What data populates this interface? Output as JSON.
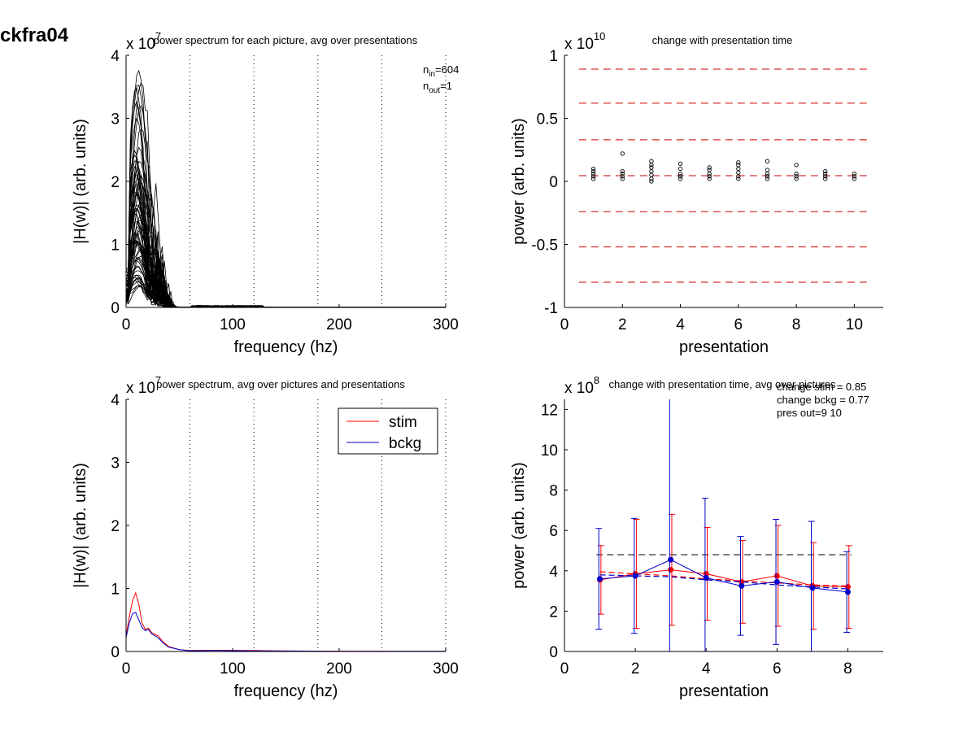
{
  "figure_title": "ckfra04",
  "chart_data": [
    {
      "id": "p1",
      "type": "line",
      "title": "power spectrum for each picture, avg over presentations",
      "xlabel": "frequency (hz)",
      "ylabel": "|H(w)| (arb. units)",
      "exponent_label": "x 10",
      "exponent": "7",
      "xlim": [
        0,
        300
      ],
      "ylim": [
        0,
        4
      ],
      "xticks": [
        0,
        100,
        200,
        300
      ],
      "yticks": [
        0,
        1,
        2,
        3,
        4
      ],
      "vlines": [
        60,
        120,
        180,
        240,
        300
      ],
      "annotations": {
        "n_in_label": "n",
        "n_in_sub": "in",
        "n_in_value": "=604",
        "n_out_label": "n",
        "n_out_sub": "out",
        "n_out_value": "=1"
      },
      "line_color": "#000000",
      "representative_peaks": [
        3.75,
        3.45,
        3.25,
        2.5,
        2.4,
        2.2,
        2.05,
        1.9,
        1.75,
        1.6,
        1.5,
        1.4,
        1.3,
        1.2,
        1.1,
        1.0,
        0.9,
        0.8,
        0.7,
        0.6,
        0.5,
        0.45,
        0.4,
        0.35
      ]
    },
    {
      "id": "p2",
      "type": "scatter",
      "title": "change with presentation time",
      "xlabel": "presentation",
      "ylabel": "power (arb. units)",
      "exponent_label": "x 10",
      "exponent": "10",
      "xlim": [
        0,
        11
      ],
      "ylim": [
        -1,
        1
      ],
      "xticks": [
        0,
        2,
        4,
        6,
        8,
        10
      ],
      "yticks": [
        -1,
        -0.5,
        0,
        0.5,
        1
      ],
      "ytick_labels": [
        "-1",
        "-0.5",
        "0",
        "0.5",
        "1"
      ],
      "hlines": [
        0.89,
        0.62,
        0.33,
        0.045,
        -0.24,
        -0.52,
        -0.8
      ],
      "hline_color": "#cc0000",
      "points": [
        {
          "x": 1,
          "y": [
            0.02,
            0.04,
            0.06,
            0.08,
            0.1
          ]
        },
        {
          "x": 2,
          "y": [
            0.02,
            0.04,
            0.06,
            0.08,
            0.22
          ]
        },
        {
          "x": 3,
          "y": [
            0.0,
            0.02,
            0.05,
            0.08,
            0.11,
            0.13,
            0.16
          ]
        },
        {
          "x": 4,
          "y": [
            0.02,
            0.04,
            0.06,
            0.1,
            0.14
          ]
        },
        {
          "x": 5,
          "y": [
            0.02,
            0.04,
            0.06,
            0.09,
            0.11
          ]
        },
        {
          "x": 6,
          "y": [
            0.02,
            0.04,
            0.07,
            0.1,
            0.13,
            0.15
          ]
        },
        {
          "x": 7,
          "y": [
            0.02,
            0.04,
            0.06,
            0.09,
            0.16
          ]
        },
        {
          "x": 8,
          "y": [
            0.02,
            0.04,
            0.06,
            0.13
          ]
        },
        {
          "x": 9,
          "y": [
            0.02,
            0.04,
            0.06,
            0.08
          ]
        },
        {
          "x": 10,
          "y": [
            0.02,
            0.04,
            0.06
          ]
        }
      ]
    },
    {
      "id": "p3",
      "type": "line",
      "title": "power spectrum, avg over pictures and presentations",
      "xlabel": "frequency (hz)",
      "ylabel": "|H(w)| (arb. units)",
      "exponent_label": "x 10",
      "exponent": "7",
      "xlim": [
        0,
        300
      ],
      "ylim": [
        0,
        4
      ],
      "xticks": [
        0,
        100,
        200,
        300
      ],
      "yticks": [
        0,
        1,
        2,
        3,
        4
      ],
      "vlines": [
        60,
        120,
        180,
        240,
        300
      ],
      "legend": "top-right",
      "series": [
        {
          "name": "stim",
          "color": "#ff0000",
          "x": [
            0,
            3,
            6,
            9,
            12,
            15,
            18,
            21,
            24,
            27,
            30,
            35,
            40,
            50,
            60,
            80,
            100,
            120,
            140,
            160,
            200,
            250,
            300
          ],
          "y": [
            0.25,
            0.55,
            0.8,
            0.93,
            0.75,
            0.45,
            0.35,
            0.37,
            0.3,
            0.27,
            0.25,
            0.15,
            0.08,
            0.03,
            0.015,
            0.02,
            0.018,
            0.015,
            0.01,
            0.008,
            0.005,
            0.003,
            0.002
          ]
        },
        {
          "name": "bckg",
          "color": "#0000cc",
          "x": [
            0,
            3,
            6,
            9,
            12,
            15,
            18,
            21,
            24,
            27,
            30,
            35,
            40,
            50,
            60,
            80,
            100,
            120,
            140,
            160,
            200,
            250,
            300
          ],
          "y": [
            0.22,
            0.45,
            0.6,
            0.62,
            0.5,
            0.38,
            0.33,
            0.35,
            0.28,
            0.25,
            0.22,
            0.13,
            0.07,
            0.03,
            0.012,
            0.015,
            0.013,
            0.01,
            0.008,
            0.006,
            0.004,
            0.003,
            0.002
          ]
        }
      ]
    },
    {
      "id": "p4",
      "type": "line",
      "title": "change with presentation time, avg over pictures",
      "xlabel": "presentation",
      "ylabel": "power (arb. units)",
      "exponent_label": "x 10",
      "exponent": "8",
      "xlim": [
        0,
        9
      ],
      "ylim": [
        0,
        12.5
      ],
      "xticks": [
        0,
        2,
        4,
        6,
        8
      ],
      "yticks": [
        0,
        2,
        4,
        6,
        8,
        10,
        12
      ],
      "notes": [
        "change stim = 0.85",
        "change bckg = 0.77",
        "pres out=9 10"
      ],
      "mean_line": 4.8,
      "series": [
        {
          "name": "stim",
          "color": "#ff0000",
          "x": [
            1,
            2,
            3,
            4,
            5,
            6,
            7,
            8
          ],
          "y": [
            3.55,
            3.85,
            4.05,
            3.85,
            3.45,
            3.75,
            3.25,
            3.2
          ],
          "err": [
            1.7,
            2.7,
            2.75,
            2.3,
            2.05,
            2.5,
            2.15,
            2.05
          ],
          "fit": [
            3.95,
            3.85,
            3.75,
            3.6,
            3.5,
            3.4,
            3.3,
            3.25
          ]
        },
        {
          "name": "bckg",
          "color": "#0000cc",
          "x": [
            1,
            2,
            3,
            4,
            5,
            6,
            7,
            8
          ],
          "y": [
            3.6,
            3.75,
            4.55,
            3.65,
            3.25,
            3.45,
            3.15,
            2.95
          ],
          "err": [
            2.5,
            2.85,
            8.5,
            3.95,
            2.45,
            3.1,
            3.3,
            2.0
          ],
          "fit": [
            3.8,
            3.75,
            3.7,
            3.55,
            3.45,
            3.3,
            3.2,
            3.1
          ]
        }
      ]
    }
  ]
}
